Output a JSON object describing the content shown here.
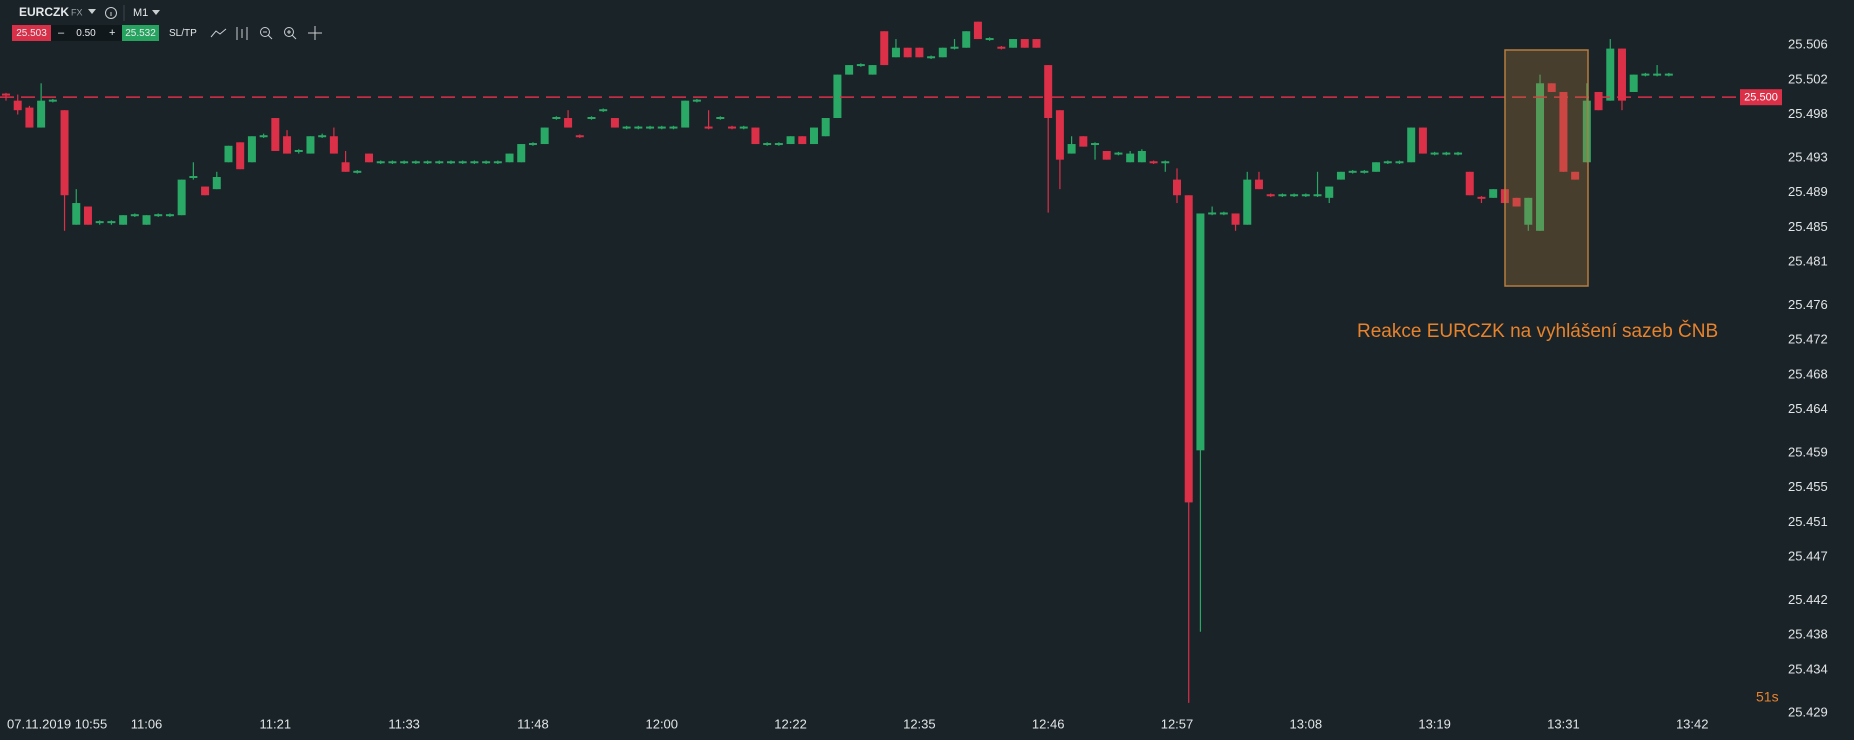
{
  "toolbar": {
    "symbol": "EURCZK",
    "market": "FX",
    "timeframe": "M1",
    "sell": "25.503",
    "minus": "–",
    "spread": "0.50",
    "plus": "+",
    "buy": "25.532",
    "sltp": "SL/TP"
  },
  "chart_data": {
    "type": "candlestick",
    "annotation": "Reakce EURCZK na vyhlášení sazeb ČNB",
    "countdown": "51s",
    "up_color": "#2aa866",
    "down_color": "#dc2f48",
    "current_price": {
      "value": 25.5,
      "label": "25.500"
    },
    "ylim": [
      25.4288,
      25.5112
    ],
    "yticks": [
      25.506,
      25.502,
      25.498,
      25.493,
      25.489,
      25.485,
      25.481,
      25.476,
      25.472,
      25.468,
      25.464,
      25.459,
      25.455,
      25.451,
      25.447,
      25.442,
      25.438,
      25.434,
      25.429
    ],
    "categories": [
      null,
      "07.11.2019 10:55",
      null,
      null,
      null,
      null,
      null,
      null,
      null,
      null,
      null,
      null,
      "11:06",
      null,
      null,
      null,
      null,
      null,
      null,
      null,
      null,
      null,
      null,
      "11:21",
      null,
      null,
      null,
      null,
      null,
      null,
      null,
      null,
      null,
      null,
      "11:33",
      null,
      null,
      null,
      null,
      null,
      null,
      null,
      null,
      null,
      null,
      "11:48",
      null,
      null,
      null,
      null,
      null,
      null,
      null,
      null,
      null,
      null,
      "12:00",
      null,
      null,
      null,
      null,
      null,
      null,
      null,
      null,
      null,
      null,
      "12:22",
      null,
      null,
      null,
      null,
      null,
      null,
      null,
      null,
      null,
      null,
      "12:35",
      null,
      null,
      null,
      null,
      null,
      null,
      null,
      null,
      null,
      null,
      "12:46",
      null,
      null,
      null,
      null,
      null,
      null,
      null,
      null,
      null,
      null,
      "12:57",
      null,
      null,
      null,
      null,
      null,
      null,
      null,
      null,
      null,
      null,
      "13:08",
      null,
      null,
      null,
      null,
      null,
      null,
      null,
      null,
      null,
      null,
      "13:19",
      null,
      null,
      null,
      null,
      null,
      null,
      null,
      null,
      null,
      null,
      "13:31",
      null,
      null,
      null,
      null,
      null,
      null,
      null,
      null,
      null,
      null,
      "13:42"
    ],
    "candles": [
      [
        25.5003,
        25.5005,
        25.4996,
        25.5003
      ],
      [
        25.4996,
        25.5003,
        25.498,
        25.4985
      ],
      [
        25.4988,
        25.499,
        25.4965,
        25.4965
      ],
      [
        25.4965,
        25.5016,
        25.4965,
        25.4996
      ],
      [
        25.4996,
        25.4998,
        25.4994,
        25.4996
      ],
      [
        25.4985,
        25.4985,
        25.4846,
        25.4887
      ],
      [
        25.4853,
        25.4894,
        25.4853,
        25.4878
      ],
      [
        25.4874,
        25.4874,
        25.4853,
        25.4853
      ],
      [
        25.4856,
        25.4858,
        25.4853,
        25.4856
      ],
      [
        25.4856,
        25.4858,
        25.4853,
        25.4856
      ],
      [
        25.4853,
        25.4864,
        25.4853,
        25.4864
      ],
      [
        25.4864,
        25.4866,
        25.4862,
        25.4864
      ],
      [
        25.4853,
        25.4864,
        25.4853,
        25.4864
      ],
      [
        25.4864,
        25.4866,
        25.4862,
        25.4864
      ],
      [
        25.4864,
        25.4866,
        25.4862,
        25.4864
      ],
      [
        25.4864,
        25.4905,
        25.4864,
        25.4905
      ],
      [
        25.4908,
        25.4925,
        25.4905,
        25.4908
      ],
      [
        25.4897,
        25.4897,
        25.4887,
        25.4887
      ],
      [
        25.4894,
        25.4914,
        25.4894,
        25.4908
      ],
      [
        25.4925,
        25.4944,
        25.4925,
        25.4944
      ],
      [
        25.4948,
        25.4948,
        25.4917,
        25.4917
      ],
      [
        25.4925,
        25.4955,
        25.4925,
        25.4955
      ],
      [
        25.4955,
        25.4958,
        25.4953,
        25.4955
      ],
      [
        25.4976,
        25.4976,
        25.4938,
        25.4938
      ],
      [
        25.4955,
        25.4962,
        25.4935,
        25.4935
      ],
      [
        25.4938,
        25.494,
        25.4935,
        25.4938
      ],
      [
        25.4935,
        25.4955,
        25.4935,
        25.4955
      ],
      [
        25.4955,
        25.4958,
        25.4953,
        25.4955
      ],
      [
        25.4955,
        25.4965,
        25.4935,
        25.4935
      ],
      [
        25.4925,
        25.4938,
        25.4914,
        25.4914
      ],
      [
        25.4914,
        25.4916,
        25.4912,
        25.4914
      ],
      [
        25.4935,
        25.4935,
        25.4925,
        25.4925
      ],
      [
        25.4925,
        25.4927,
        25.4923,
        25.4925
      ],
      [
        25.4925,
        25.4927,
        25.4923,
        25.4925
      ],
      [
        25.4925,
        25.4927,
        25.4923,
        25.4925
      ],
      [
        25.4925,
        25.4927,
        25.4923,
        25.4925
      ],
      [
        25.4925,
        25.4927,
        25.4923,
        25.4925
      ],
      [
        25.4925,
        25.4927,
        25.4923,
        25.4925
      ],
      [
        25.4925,
        25.4927,
        25.4923,
        25.4925
      ],
      [
        25.4925,
        25.4927,
        25.4923,
        25.4925
      ],
      [
        25.4925,
        25.4927,
        25.4923,
        25.4925
      ],
      [
        25.4925,
        25.4927,
        25.4923,
        25.4925
      ],
      [
        25.4925,
        25.4927,
        25.4923,
        25.4925
      ],
      [
        25.4925,
        25.4935,
        25.4925,
        25.4935
      ],
      [
        25.4925,
        25.4946,
        25.4925,
        25.4946
      ],
      [
        25.4946,
        25.4948,
        25.4944,
        25.4946
      ],
      [
        25.4946,
        25.4965,
        25.4946,
        25.4965
      ],
      [
        25.4976,
        25.4978,
        25.4974,
        25.4976
      ],
      [
        25.4976,
        25.4985,
        25.4965,
        25.4965
      ],
      [
        25.4955,
        25.4957,
        25.4953,
        25.4955
      ],
      [
        25.4976,
        25.4978,
        25.4974,
        25.4976
      ],
      [
        25.4985,
        25.4987,
        25.4983,
        25.4985
      ],
      [
        25.4976,
        25.4976,
        25.4965,
        25.4965
      ],
      [
        25.4965,
        25.4967,
        25.4963,
        25.4965
      ],
      [
        25.4965,
        25.4967,
        25.4963,
        25.4965
      ],
      [
        25.4965,
        25.4967,
        25.4963,
        25.4965
      ],
      [
        25.4965,
        25.4967,
        25.4963,
        25.4965
      ],
      [
        25.4965,
        25.4967,
        25.4963,
        25.4965
      ],
      [
        25.4965,
        25.4996,
        25.4965,
        25.4996
      ],
      [
        25.4996,
        25.4998,
        25.4994,
        25.4996
      ],
      [
        25.4965,
        25.4985,
        25.4963,
        25.4965
      ],
      [
        25.4976,
        25.4978,
        25.4974,
        25.4976
      ],
      [
        25.4965,
        25.4967,
        25.4963,
        25.4965
      ],
      [
        25.4965,
        25.4967,
        25.4963,
        25.4965
      ],
      [
        25.4965,
        25.4965,
        25.4946,
        25.4946
      ],
      [
        25.4946,
        25.4948,
        25.4944,
        25.4946
      ],
      [
        25.4946,
        25.4948,
        25.4944,
        25.4946
      ],
      [
        25.4946,
        25.4955,
        25.4946,
        25.4955
      ],
      [
        25.4955,
        25.4955,
        25.4946,
        25.4946
      ],
      [
        25.4946,
        25.4965,
        25.4946,
        25.4965
      ],
      [
        25.4955,
        25.4976,
        25.4955,
        25.4976
      ],
      [
        25.4976,
        25.5026,
        25.4976,
        25.5026
      ],
      [
        25.5026,
        25.5037,
        25.5026,
        25.5037
      ],
      [
        25.5037,
        25.5039,
        25.5035,
        25.5037
      ],
      [
        25.5026,
        25.5037,
        25.5026,
        25.5037
      ],
      [
        25.5076,
        25.5076,
        25.5037,
        25.5037
      ],
      [
        25.5046,
        25.5067,
        25.5046,
        25.5057
      ],
      [
        25.5057,
        25.5057,
        25.5046,
        25.5046
      ],
      [
        25.5057,
        25.5057,
        25.5046,
        25.5046
      ],
      [
        25.5046,
        25.5048,
        25.5044,
        25.5046
      ],
      [
        25.5046,
        25.5057,
        25.5046,
        25.5057
      ],
      [
        25.5057,
        25.5067,
        25.5055,
        25.5057
      ],
      [
        25.5057,
        25.5076,
        25.5057,
        25.5076
      ],
      [
        25.5087,
        25.5087,
        25.5067,
        25.5067
      ],
      [
        25.5067,
        25.5069,
        25.5065,
        25.5067
      ],
      [
        25.5057,
        25.5059,
        25.5055,
        25.5057
      ],
      [
        25.5057,
        25.5067,
        25.5057,
        25.5067
      ],
      [
        25.5067,
        25.5067,
        25.5057,
        25.5057
      ],
      [
        25.5067,
        25.5067,
        25.5057,
        25.5057
      ],
      [
        25.5037,
        25.5037,
        25.4867,
        25.4976
      ],
      [
        25.4985,
        25.4985,
        25.4894,
        25.4928
      ],
      [
        25.4935,
        25.4955,
        25.4935,
        25.4946
      ],
      [
        25.4955,
        25.4955,
        25.4943,
        25.4943
      ],
      [
        25.4946,
        25.4948,
        25.4928,
        25.4946
      ],
      [
        25.4938,
        25.4938,
        25.4928,
        25.4928
      ],
      [
        25.4935,
        25.4937,
        25.4933,
        25.4935
      ],
      [
        25.4925,
        25.4938,
        25.4925,
        25.4935
      ],
      [
        25.4925,
        25.494,
        25.4925,
        25.4938
      ],
      [
        25.4925,
        25.4927,
        25.4923,
        25.4925
      ],
      [
        25.4925,
        25.4927,
        25.4914,
        25.4925
      ],
      [
        25.4905,
        25.4918,
        25.4878,
        25.4887
      ],
      [
        25.4887,
        25.4887,
        25.4302,
        25.4533
      ],
      [
        25.4593,
        25.4866,
        25.4384,
        25.4866
      ],
      [
        25.4866,
        25.4874,
        25.4864,
        25.4866
      ],
      [
        25.4866,
        25.4868,
        25.4864,
        25.4866
      ],
      [
        25.4866,
        25.4866,
        25.4846,
        25.4853
      ],
      [
        25.4853,
        25.4914,
        25.4853,
        25.4905
      ],
      [
        25.4905,
        25.4914,
        25.4894,
        25.4894
      ],
      [
        25.4887,
        25.4889,
        25.4885,
        25.4887
      ],
      [
        25.4887,
        25.4889,
        25.4885,
        25.4887
      ],
      [
        25.4887,
        25.4889,
        25.4885,
        25.4887
      ],
      [
        25.4887,
        25.4889,
        25.4885,
        25.4887
      ],
      [
        25.4887,
        25.4914,
        25.4885,
        25.4887
      ],
      [
        25.4884,
        25.4897,
        25.4878,
        25.4897
      ],
      [
        25.4905,
        25.4914,
        25.4905,
        25.4914
      ],
      [
        25.4914,
        25.4916,
        25.4912,
        25.4914
      ],
      [
        25.4914,
        25.4916,
        25.4912,
        25.4914
      ],
      [
        25.4914,
        25.4925,
        25.4914,
        25.4925
      ],
      [
        25.4925,
        25.4927,
        25.4923,
        25.4925
      ],
      [
        25.4925,
        25.4927,
        25.4923,
        25.4925
      ],
      [
        25.4925,
        25.4965,
        25.4925,
        25.4965
      ],
      [
        25.4965,
        25.4965,
        25.4935,
        25.4935
      ],
      [
        25.4935,
        25.4937,
        25.4933,
        25.4935
      ],
      [
        25.4935,
        25.4937,
        25.4933,
        25.4935
      ],
      [
        25.4935,
        25.4937,
        25.4933,
        25.4935
      ],
      [
        25.4914,
        25.4914,
        25.4887,
        25.4887
      ],
      [
        25.4884,
        25.4886,
        25.4878,
        25.4884
      ],
      [
        25.4884,
        25.4894,
        25.4884,
        25.4894
      ],
      [
        25.4894,
        25.4894,
        25.4878,
        25.4878
      ],
      [
        25.4884,
        25.4884,
        25.4874,
        25.4874
      ],
      [
        25.4853,
        25.4884,
        25.4846,
        25.4884
      ],
      [
        25.4846,
        25.5026,
        25.4846,
        25.5016
      ],
      [
        25.5016,
        25.5016,
        25.5006,
        25.5006
      ],
      [
        25.5006,
        25.5006,
        25.4914,
        25.4914
      ],
      [
        25.4914,
        25.4914,
        25.4905,
        25.4905
      ],
      [
        25.4925,
        25.5016,
        25.4925,
        25.4996
      ],
      [
        25.5006,
        25.5006,
        25.4985,
        25.4985
      ],
      [
        25.4996,
        25.5067,
        25.4996,
        25.5056
      ],
      [
        25.5056,
        25.5056,
        25.4985,
        25.4996
      ],
      [
        25.5006,
        25.5026,
        25.5006,
        25.5026
      ],
      [
        25.5026,
        25.5028,
        25.5024,
        25.5026
      ],
      [
        25.5026,
        25.5037,
        25.5024,
        25.5026
      ],
      [
        25.5026,
        25.5028,
        25.5024,
        25.5026
      ],
      null,
      null
    ]
  }
}
